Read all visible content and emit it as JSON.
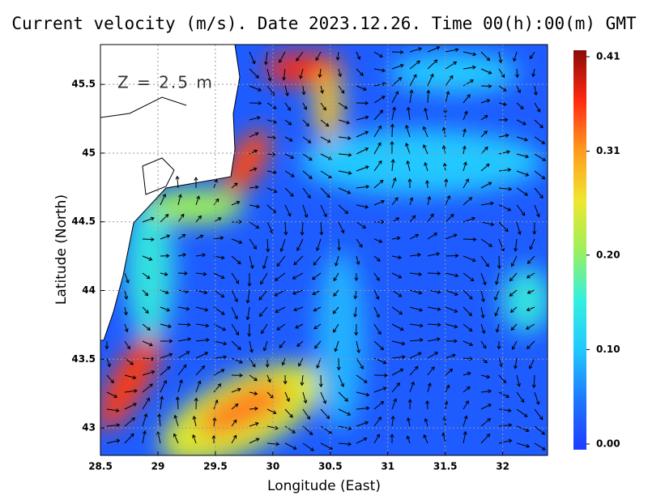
{
  "chart_data": {
    "type": "map",
    "title": "Current velocity (m/s). Date 2023.12.26. Time 00(h):00(m) GMT",
    "annotation": "Z = 2.5 m",
    "xlabel": "Longitude (East)",
    "ylabel": "Latitude (North)",
    "xlim": [
      28.5,
      32.39
    ],
    "xticks": [
      28.5,
      29,
      29.5,
      30,
      30.5,
      31,
      31.5,
      32
    ],
    "ylim": [
      42.8,
      45.79
    ],
    "yticks": [
      43,
      43.5,
      44,
      44.5,
      45,
      45.5
    ],
    "grid": true,
    "colorbar": {
      "lim": [
        0,
        0.41
      ],
      "ticks": [
        {
          "value": 0,
          "label": "0.00"
        },
        {
          "value": 0.1,
          "label": "0.10"
        },
        {
          "value": 0.2,
          "label": "0.20"
        },
        0.31,
        0.41
      ],
      "colormap": [
        "#1e3cff",
        "#1e78ff",
        "#22c8ff",
        "#33f0e0",
        "#9cf05a",
        "#f0e630",
        "#ff9a1e",
        "#ff2a10",
        "#8c0a0a"
      ]
    }
  }
}
